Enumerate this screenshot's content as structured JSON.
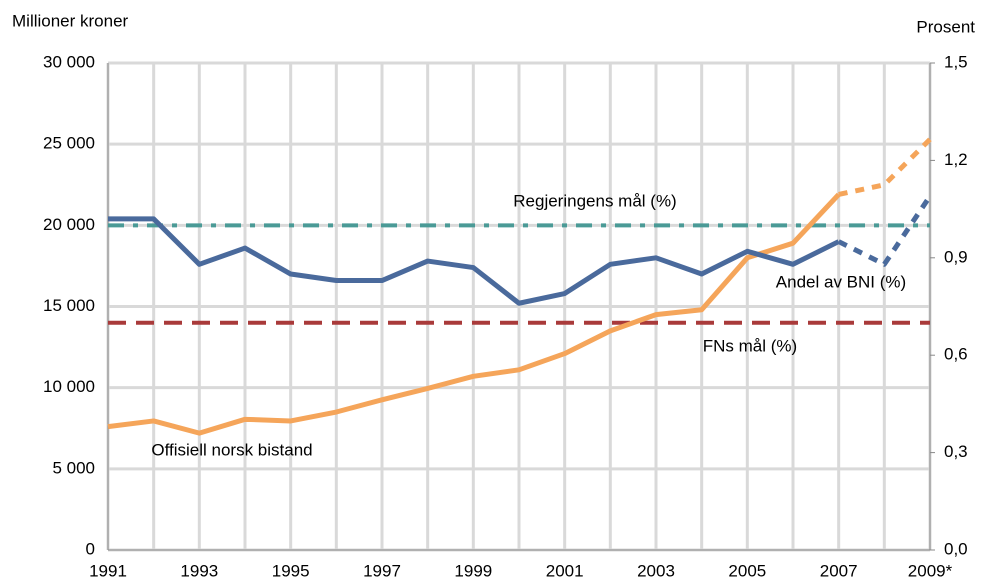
{
  "chart_data": {
    "type": "line",
    "y_label": "Millioner kroner",
    "y2_label": "Prosent",
    "categories": [
      "1991",
      null,
      "1993",
      null,
      "1995",
      null,
      "1997",
      null,
      "1999",
      null,
      "2001",
      null,
      "2003",
      null,
      "2005",
      null,
      "2007",
      null,
      "2009*"
    ],
    "projected_from": "2007",
    "series": [
      {
        "name": "Offisiell norsk bistand",
        "color": "#f5a55a",
        "axis": "y",
        "values": [
          7600,
          7950,
          7200,
          8050,
          7950,
          8500,
          9250,
          9950,
          10700,
          11100,
          12100,
          13500,
          14500,
          14800,
          18000,
          18900,
          21900,
          22500,
          25300
        ]
      },
      {
        "name": "Andel av BNI (%)",
        "color": "#4a6a9c",
        "axis": "y2",
        "values": [
          1.02,
          1.02,
          0.88,
          0.93,
          0.85,
          0.83,
          0.83,
          0.89,
          0.87,
          0.76,
          0.79,
          0.88,
          0.9,
          0.85,
          0.92,
          0.88,
          0.95,
          0.88,
          1.09
        ]
      }
    ],
    "reference_lines": [
      {
        "name": "Regjeringens mål (%)",
        "value": 1.0,
        "axis": "y2",
        "color": "#4a9a96",
        "style": "dashdot"
      },
      {
        "name": "FNs mål (%)",
        "value": 0.7,
        "axis": "y2",
        "color": "#a93a3a",
        "style": "dashed"
      }
    ],
    "ylim": [
      0,
      30000
    ],
    "yticks": [
      {
        "value": 0,
        "label": "0"
      },
      {
        "value": 5000,
        "label": "5 000"
      },
      {
        "value": 10000,
        "label": "10 000"
      },
      {
        "value": 15000,
        "label": "15 000"
      },
      {
        "value": 20000,
        "label": "20 000"
      },
      {
        "value": 25000,
        "label": "25 000"
      },
      {
        "value": 30000,
        "label": "30 000"
      }
    ],
    "y2lim": [
      0,
      1.5
    ],
    "y2ticks": [
      {
        "value": 0,
        "label": "0,0"
      },
      {
        "value": 0.3,
        "label": "0,3"
      },
      {
        "value": 0.6,
        "label": "0,6"
      },
      {
        "value": 0.9,
        "label": "0,9"
      },
      {
        "value": 1.2,
        "label": "1,2"
      },
      {
        "value": 1.5,
        "label": "1,5"
      }
    ],
    "grid": true
  }
}
